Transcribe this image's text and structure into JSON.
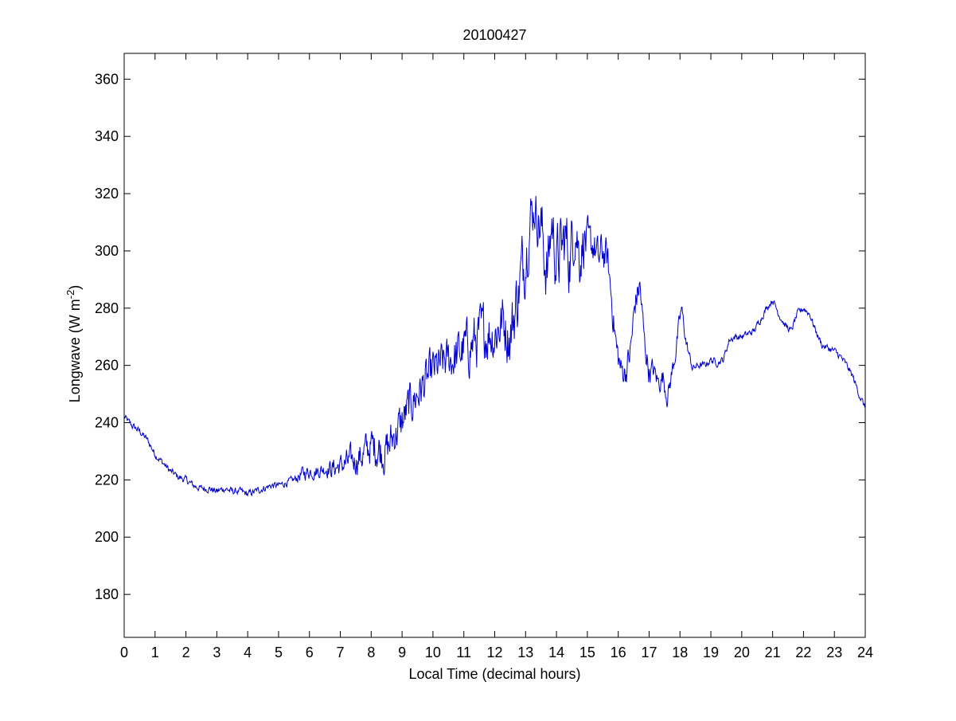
{
  "chart_data": {
    "type": "line",
    "title": "20100427",
    "xlabel": "Local Time (decimal hours)",
    "ylabel": "Longwave (W m",
    "ylabel_exponent": "-2",
    "ylabel_suffix": ")",
    "xlim": [
      0,
      24
    ],
    "ylim": [
      165,
      369
    ],
    "x_ticks": [
      0,
      1,
      2,
      3,
      4,
      5,
      6,
      7,
      8,
      9,
      10,
      11,
      12,
      13,
      14,
      15,
      16,
      17,
      18,
      19,
      20,
      21,
      22,
      23,
      24
    ],
    "x_tick_labels": [
      "0",
      "1",
      "2",
      "3",
      "4",
      "5",
      "6",
      "7",
      "8",
      "9",
      "10",
      "11",
      "12",
      "13",
      "14",
      "15",
      "16",
      "17",
      "18",
      "19",
      "20",
      "21",
      "22",
      "23",
      "24"
    ],
    "y_ticks": [
      180,
      200,
      220,
      240,
      260,
      280,
      300,
      320,
      340,
      360
    ],
    "y_tick_labels": [
      "180",
      "200",
      "220",
      "240",
      "260",
      "280",
      "300",
      "320",
      "340",
      "360"
    ],
    "grid": false,
    "line_color": "#0000cc",
    "series": [
      {
        "x": [
          0,
          0.25,
          0.5,
          0.75,
          1.0,
          1.25,
          1.5,
          1.75,
          2.0,
          2.25,
          2.5,
          2.75,
          3.0,
          3.25,
          3.5,
          3.75,
          4.0,
          4.25,
          4.5,
          4.75,
          5.0,
          5.25,
          5.5,
          5.75,
          6.0,
          6.25,
          6.5,
          6.75,
          7.0,
          7.25,
          7.5,
          7.75,
          8.0,
          8.25,
          8.5,
          8.75,
          9.0,
          9.25,
          9.5,
          9.75,
          10.0,
          10.25,
          10.5,
          10.75,
          11.0,
          11.25,
          11.5,
          11.75,
          12.0,
          12.25,
          12.5,
          12.75,
          13.0,
          13.15,
          13.3,
          13.5,
          13.7,
          13.85,
          14.0,
          14.15,
          14.3,
          14.45,
          14.6,
          14.75,
          14.9,
          15.05,
          15.2,
          15.35,
          15.5,
          15.65,
          15.8,
          15.95,
          16.1,
          16.25,
          16.4,
          16.55,
          16.7,
          16.85,
          17.0,
          17.15,
          17.3,
          17.45,
          17.6,
          17.75,
          17.9,
          18.05,
          18.2,
          18.4,
          18.6,
          18.8,
          19.0,
          19.2,
          19.4,
          19.6,
          19.8,
          20.0,
          20.2,
          20.4,
          20.6,
          20.8,
          21.0,
          21.2,
          21.4,
          21.6,
          21.8,
          22.0,
          22.2,
          22.4,
          22.6,
          22.8,
          23.0,
          23.2,
          23.4,
          23.6,
          23.8,
          24.0
        ],
        "y": [
          242,
          239,
          237,
          234,
          229,
          226,
          223,
          221,
          220,
          218,
          217,
          217,
          216,
          217,
          216,
          216,
          215,
          216,
          217,
          218,
          218,
          219,
          220,
          222,
          223,
          223,
          224,
          224,
          225,
          226,
          227,
          229,
          232,
          231,
          230,
          236,
          240,
          246,
          250,
          254,
          258,
          260,
          262,
          263,
          266,
          267,
          270,
          272,
          271,
          276,
          270,
          285,
          300,
          312,
          315,
          308,
          292,
          310,
          296,
          300,
          304,
          297,
          312,
          298,
          305,
          300,
          303,
          296,
          300,
          297,
          282,
          265,
          258,
          258,
          265,
          282,
          288,
          268,
          258,
          258,
          254,
          256,
          249,
          258,
          268,
          280,
          268,
          259,
          260,
          260,
          262,
          261,
          262,
          269,
          270,
          270,
          271,
          272,
          276,
          280,
          283,
          278,
          274,
          272,
          278,
          280,
          278,
          272,
          267,
          266,
          265,
          263,
          260,
          256,
          250,
          245
        ],
        "noise_amplitude": [
          1,
          1,
          1,
          1,
          1,
          1,
          1,
          1,
          1,
          1,
          1,
          1,
          1,
          1,
          1,
          1,
          1,
          1,
          1,
          1,
          1,
          1,
          1,
          2,
          2,
          2,
          2,
          3,
          3,
          4,
          4,
          5,
          5,
          6,
          6,
          6,
          6,
          6,
          6,
          6,
          6,
          6,
          6,
          7,
          7,
          8,
          8,
          8,
          8,
          8,
          9,
          10,
          10,
          8,
          6,
          10,
          10,
          8,
          10,
          10,
          10,
          10,
          10,
          8,
          8,
          6,
          6,
          6,
          6,
          5,
          5,
          5,
          4,
          4,
          5,
          5,
          4,
          4,
          4,
          3,
          3,
          3,
          3,
          3,
          3,
          2,
          2,
          1,
          1,
          1,
          1,
          1,
          1,
          1,
          1,
          1,
          1,
          1,
          1,
          1,
          1,
          1,
          1,
          1,
          1,
          1,
          1,
          1,
          1,
          1,
          1,
          1,
          1,
          1,
          1,
          1
        ]
      }
    ]
  }
}
